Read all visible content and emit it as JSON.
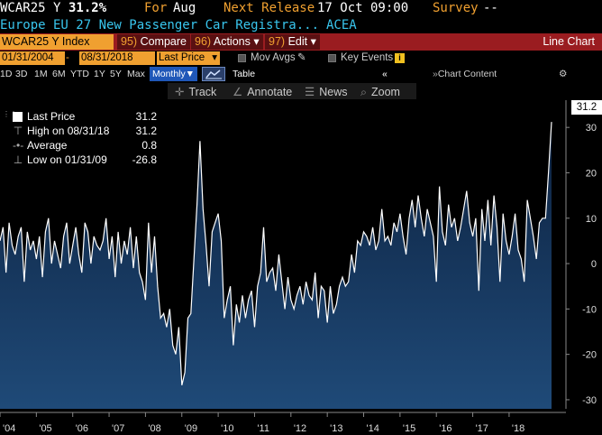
{
  "header": {
    "ticker": "WCAR25 Y",
    "value": "31.2%",
    "for_label": "For",
    "for_value": "Aug",
    "next_release_label": "Next Release",
    "next_release_value": "17 Oct 09:00",
    "survey_label": "Survey",
    "survey_value": "--",
    "description": "Europe EU 27 New Passenger Car Registra...",
    "source": "ACEA"
  },
  "menubar": {
    "ticker_box": "WCAR25 Y Index",
    "compare_num": "95)",
    "compare_label": "Compare",
    "actions_num": "96)",
    "actions_label": "Actions",
    "edit_num": "97)",
    "edit_label": "Edit",
    "view_label": "Line Chart"
  },
  "range": {
    "start": "01/31/2004",
    "dash": "-",
    "end": "08/31/2018",
    "field": "Last Price",
    "mov_avgs": "Mov Avgs",
    "key_events": "Key Events"
  },
  "periods": [
    "1D",
    "3D",
    "1M",
    "6M",
    "YTD",
    "1Y",
    "5Y",
    "Max"
  ],
  "frequency": "Monthly",
  "table_label": "Table",
  "chart_content_label": "Chart Content",
  "tools": {
    "track": "Track",
    "annotate": "Annotate",
    "news": "News",
    "zoom": "Zoom"
  },
  "legend": {
    "last_price_label": "Last Price",
    "last_price_value": "31.2",
    "high_label": "High on 08/31/18",
    "high_value": "31.2",
    "average_label": "Average",
    "average_value": "0.8",
    "low_label": "Low on 01/31/09",
    "low_value": "-26.8"
  },
  "last_tag": "31.2",
  "colors": {
    "orange": "#f0a030",
    "cyan": "#39c6ee",
    "menubar": "#9a1c20",
    "monthly_button": "#1f57b8",
    "area_fill_top": "#0d2240",
    "area_fill_bottom": "#1f4a78",
    "line": "#ffffff"
  },
  "icons": {
    "mov_avgs": "pencil-icon",
    "key_events": "info-icon",
    "chart_type": "line-chart-icon",
    "collapse": "double-chevron-left-icon",
    "settings": "gear-icon",
    "track": "crosshair-icon",
    "annotate": "pen-icon",
    "news": "list-icon",
    "zoom": "magnifier-icon"
  },
  "chart_data": {
    "type": "area",
    "xlabel": "",
    "ylabel": "",
    "ylim": [
      -32,
      36
    ],
    "yticks": [
      -30,
      -20,
      -10,
      0,
      10,
      20,
      30
    ],
    "xtick_labels": [
      "'04",
      "'05",
      "'06",
      "'07",
      "'08",
      "'09",
      "'10",
      "'11",
      "'12",
      "'13",
      "'14",
      "'15",
      "'16",
      "'17",
      "'18"
    ],
    "grid": false,
    "x_start": "2004-01",
    "series": [
      {
        "name": "Last Price",
        "values": [
          5,
          8,
          -2,
          9,
          4,
          2,
          6,
          8,
          -4,
          7,
          3,
          5,
          1,
          6,
          -3,
          7,
          10,
          0,
          5,
          2,
          -1,
          6,
          9,
          0,
          4,
          8,
          2,
          -2,
          9,
          7,
          0,
          6,
          4,
          3,
          5,
          10,
          1,
          6,
          -3,
          7,
          0,
          5,
          2,
          8,
          -1,
          6,
          -2,
          -4,
          -8,
          9,
          -2,
          6,
          -5,
          -12,
          -11,
          -14,
          -10,
          -18,
          -20,
          -14,
          -26.8,
          -24,
          -12,
          -11,
          1,
          13,
          27,
          12,
          4,
          -5,
          7,
          9,
          11,
          5,
          -12,
          -8,
          -5,
          -18,
          -9,
          -13,
          -7,
          -12,
          -8,
          -6,
          -14,
          -5,
          -2,
          8,
          -4,
          -2,
          -1,
          -6,
          2,
          -4,
          -10,
          -3,
          -8,
          -10,
          -7,
          -5,
          -9,
          -4,
          -7,
          -8,
          -2,
          -12,
          -5,
          -6,
          -13,
          -5,
          -11,
          -9,
          -5,
          -3,
          -5,
          -4,
          2,
          -2,
          5,
          4,
          7,
          6,
          4,
          8,
          3,
          5,
          12,
          5,
          6,
          4,
          9,
          7,
          11,
          6,
          2,
          10,
          14,
          8,
          15,
          10,
          6,
          12,
          9,
          6,
          -4,
          17,
          7,
          4,
          13,
          8,
          10,
          5,
          8,
          12,
          16,
          9,
          6,
          10,
          -6,
          12,
          5,
          14,
          4,
          15,
          8,
          -4,
          11,
          5,
          2,
          6,
          11,
          3,
          1,
          -4,
          14,
          10,
          6,
          1,
          9,
          10,
          10,
          20,
          31.2
        ]
      }
    ]
  }
}
